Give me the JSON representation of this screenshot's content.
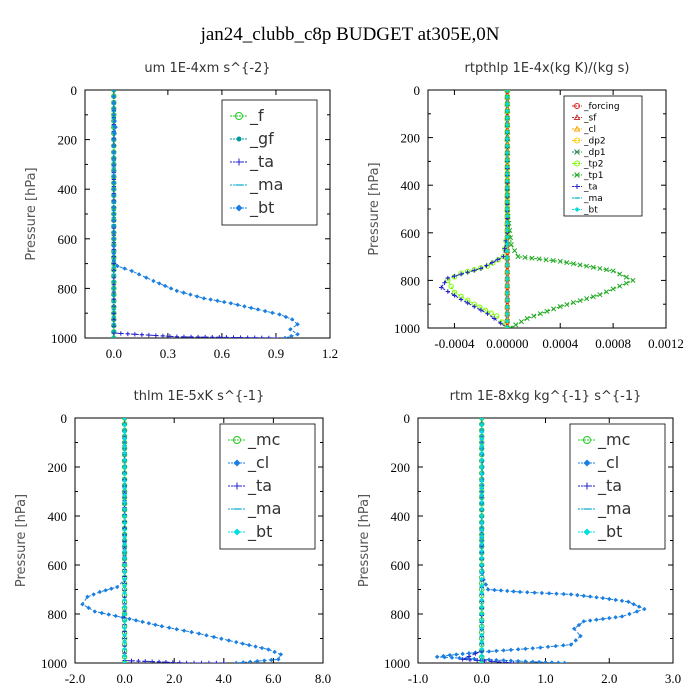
{
  "title": "jan24_clubb_c8p  BUDGET at305E,0N",
  "chart_data": [
    {
      "type": "line",
      "title": "um   1E-4xm s^{-2}",
      "ylabel": "Pressure [hPa]",
      "xlim": [
        -0.16,
        1.2
      ],
      "ylim": [
        1000,
        0
      ],
      "xticks": [
        0.0,
        0.3,
        0.6,
        0.9,
        1.2
      ],
      "xtick_labels": [
        "0.0",
        "0.3",
        "0.6",
        "0.9",
        "1.2"
      ],
      "yticks": [
        0,
        200,
        400,
        600,
        800,
        1000
      ],
      "legend_style": "large",
      "series": [
        {
          "name": "_f",
          "color": "#22cc22",
          "marker": "circle",
          "points": [
            [
              0,
              0
            ],
            [
              0,
              100
            ],
            [
              0,
              200
            ],
            [
              0,
              300
            ],
            [
              0,
              400
            ],
            [
              0,
              500
            ],
            [
              0,
              600
            ],
            [
              0,
              700
            ],
            [
              0,
              800
            ],
            [
              0,
              900
            ],
            [
              0,
              1000
            ]
          ]
        },
        {
          "name": "_gf",
          "color": "#009999",
          "marker": "dot",
          "points": [
            [
              0,
              0
            ],
            [
              0,
              100
            ],
            [
              0,
              200
            ],
            [
              0,
              300
            ],
            [
              0,
              400
            ],
            [
              0,
              500
            ],
            [
              0,
              600
            ],
            [
              0,
              700
            ],
            [
              0,
              800
            ],
            [
              0,
              900
            ],
            [
              0,
              1000
            ]
          ]
        },
        {
          "name": "_ta",
          "color": "#2222cc",
          "marker": "plus",
          "points": [
            [
              0,
              0
            ],
            [
              0,
              500
            ],
            [
              0,
              900
            ],
            [
              0,
              980
            ],
            [
              0.35,
              995
            ],
            [
              0.9,
              1000
            ]
          ]
        },
        {
          "name": "_ma",
          "color": "#00a8c8",
          "marker": "dash",
          "points": [
            [
              0,
              0
            ],
            [
              0,
              1000
            ]
          ]
        },
        {
          "name": "_bt",
          "color": "#1a7fe0",
          "marker": "diamond",
          "points": [
            [
              0,
              0
            ],
            [
              0,
              100
            ],
            [
              0.01,
              150
            ],
            [
              0,
              200
            ],
            [
              0,
              300
            ],
            [
              0,
              400
            ],
            [
              0,
              500
            ],
            [
              0,
              600
            ],
            [
              0,
              690
            ],
            [
              0.02,
              710
            ],
            [
              0.1,
              730
            ],
            [
              0.22,
              770
            ],
            [
              0.35,
              810
            ],
            [
              0.5,
              840
            ],
            [
              0.65,
              860
            ],
            [
              0.8,
              885
            ],
            [
              0.92,
              905
            ],
            [
              0.99,
              925
            ],
            [
              1.02,
              945
            ],
            [
              0.98,
              965
            ],
            [
              1.02,
              985
            ],
            [
              0.95,
              1000
            ]
          ]
        }
      ]
    },
    {
      "type": "line",
      "title": "rtpthlp   1E-4x(kg K)/(kg s)",
      "ylabel": "Pressure [hPa]",
      "xlim": [
        -0.0006,
        0.0012
      ],
      "ylim": [
        1000,
        0
      ],
      "xticks": [
        -0.0004,
        0.0,
        0.0004,
        0.0008,
        0.0012
      ],
      "xtick_labels": [
        "-0.0004",
        "0.00000",
        "0.0004",
        "0.0008",
        "0.0012"
      ],
      "yticks": [
        0,
        200,
        400,
        600,
        800,
        1000
      ],
      "legend_style": "small",
      "series": [
        {
          "name": "_forcing",
          "color": "#dd2222",
          "marker": "circle",
          "points": [
            [
              0,
              0
            ],
            [
              0,
              1000
            ]
          ]
        },
        {
          "name": "_sf",
          "color": "#cc3333",
          "marker": "tri",
          "points": [
            [
              0,
              0
            ],
            [
              0,
              1000
            ]
          ]
        },
        {
          "name": "_cl",
          "color": "#ffa500",
          "marker": "tri",
          "points": [
            [
              0,
              0
            ],
            [
              0,
              1000
            ]
          ]
        },
        {
          "name": "_dp2",
          "color": "#ffcc00",
          "marker": "circle",
          "points": [
            [
              0,
              0
            ],
            [
              0,
              1000
            ]
          ]
        },
        {
          "name": "_dp1",
          "color": "#2e8b57",
          "marker": "cross",
          "points": [
            [
              0,
              0
            ],
            [
              0,
              1000
            ]
          ]
        },
        {
          "name": "_tp2",
          "color": "#7cfc00",
          "marker": "circle",
          "points": [
            [
              0,
              0
            ],
            [
              0,
              600
            ],
            [
              -3e-05,
              700
            ],
            [
              -0.00015,
              740
            ],
            [
              -0.00035,
              770
            ],
            [
              -0.00045,
              800
            ],
            [
              -0.0004,
              850
            ],
            [
              -0.00025,
              900
            ],
            [
              -8e-05,
              950
            ],
            [
              0,
              1000
            ]
          ]
        },
        {
          "name": "_tp1",
          "color": "#22aa22",
          "marker": "cross",
          "points": [
            [
              0,
              0
            ],
            [
              0,
              500
            ],
            [
              3e-05,
              650
            ],
            [
              8e-05,
              700
            ],
            [
              0.0004,
              720
            ],
            [
              0.0008,
              760
            ],
            [
              0.00095,
              800
            ],
            [
              0.0007,
              860
            ],
            [
              0.0004,
              910
            ],
            [
              0.00015,
              960
            ],
            [
              2e-05,
              1000
            ]
          ]
        },
        {
          "name": "_ta",
          "color": "#2222cc",
          "marker": "plus",
          "points": [
            [
              0,
              0
            ],
            [
              0,
              600
            ],
            [
              -3e-05,
              700
            ],
            [
              -0.0002,
              750
            ],
            [
              -0.00045,
              790
            ],
            [
              -0.0005,
              830
            ],
            [
              -0.00035,
              880
            ],
            [
              -0.00015,
              940
            ],
            [
              0,
              1000
            ]
          ]
        },
        {
          "name": "_ma",
          "color": "#00a8c8",
          "marker": "dash",
          "points": [
            [
              0,
              0
            ],
            [
              0,
              1000
            ]
          ]
        },
        {
          "name": "_bt",
          "color": "#00dddd",
          "marker": "diamond",
          "points": [
            [
              0,
              0
            ],
            [
              0,
              1000
            ]
          ]
        }
      ]
    },
    {
      "type": "line",
      "title": "thlm   1E-5xK s^{-1}",
      "ylabel": "Pressure [hPa]",
      "xlim": [
        -2.0,
        8.0
      ],
      "ylim": [
        1000,
        0
      ],
      "xticks": [
        -2.0,
        0.0,
        2.0,
        4.0,
        6.0,
        8.0
      ],
      "xtick_labels": [
        "-2.0",
        "0.0",
        "2.0",
        "4.0",
        "6.0",
        "8.0"
      ],
      "yticks": [
        0,
        200,
        400,
        600,
        800,
        1000
      ],
      "legend_style": "large",
      "series": [
        {
          "name": "_mc",
          "color": "#22cc22",
          "marker": "circle",
          "points": [
            [
              0,
              0
            ],
            [
              0,
              100
            ],
            [
              0,
              200
            ],
            [
              0,
              300
            ],
            [
              0,
              400
            ],
            [
              0,
              500
            ],
            [
              0,
              600
            ],
            [
              0,
              700
            ],
            [
              0,
              800
            ],
            [
              0,
              900
            ],
            [
              0,
              1000
            ]
          ]
        },
        {
          "name": "_cl",
          "color": "#1a7fe0",
          "marker": "diamond",
          "points": [
            [
              0,
              0
            ],
            [
              0,
              100
            ],
            [
              0,
              200
            ],
            [
              0,
              300
            ],
            [
              0,
              400
            ],
            [
              0,
              500
            ],
            [
              0,
              600
            ],
            [
              0,
              660
            ],
            [
              -0.3,
              690
            ],
            [
              -1.0,
              710
            ],
            [
              -1.5,
              730
            ],
            [
              -1.7,
              760
            ],
            [
              -1.2,
              790
            ],
            [
              0.2,
              820
            ],
            [
              1.5,
              850
            ],
            [
              3.0,
              880
            ],
            [
              4.5,
              915
            ],
            [
              5.8,
              945
            ],
            [
              6.3,
              965
            ],
            [
              6.2,
              985
            ],
            [
              4.5,
              1000
            ]
          ]
        },
        {
          "name": "_ta",
          "color": "#2222cc",
          "marker": "plus",
          "points": [
            [
              0,
              0
            ],
            [
              0,
              900
            ],
            [
              0,
              990
            ],
            [
              2.5,
              1000
            ],
            [
              4.0,
              1000
            ]
          ]
        },
        {
          "name": "_ma",
          "color": "#00a8c8",
          "marker": "dash",
          "points": [
            [
              0,
              0
            ],
            [
              0,
              1000
            ]
          ]
        },
        {
          "name": "_bt",
          "color": "#00dddd",
          "marker": "diamond",
          "points": [
            [
              0,
              0
            ],
            [
              0,
              1000
            ]
          ]
        }
      ]
    },
    {
      "type": "line",
      "title": "rtm   1E-8xkg kg^{-1} s^{-1}",
      "ylabel": "Pressure [hPa]",
      "xlim": [
        -1.0,
        3.0
      ],
      "ylim": [
        1000,
        0
      ],
      "xticks": [
        -1.0,
        0.0,
        1.0,
        2.0,
        3.0
      ],
      "xtick_labels": [
        "-1.0",
        "0.0",
        "1.0",
        "2.0",
        "3.0"
      ],
      "yticks": [
        0,
        200,
        400,
        600,
        800,
        1000
      ],
      "legend_style": "large",
      "series": [
        {
          "name": "_mc",
          "color": "#22cc22",
          "marker": "circle",
          "points": [
            [
              0,
              0
            ],
            [
              0,
              100
            ],
            [
              0,
              200
            ],
            [
              0,
              300
            ],
            [
              0,
              400
            ],
            [
              0,
              500
            ],
            [
              0,
              600
            ],
            [
              0,
              700
            ],
            [
              0,
              800
            ],
            [
              0,
              900
            ],
            [
              0,
              1000
            ]
          ]
        },
        {
          "name": "_cl",
          "color": "#1a7fe0",
          "marker": "diamond",
          "points": [
            [
              0,
              0
            ],
            [
              0,
              100
            ],
            [
              0.01,
              200
            ],
            [
              0,
              300
            ],
            [
              0,
              400
            ],
            [
              0,
              500
            ],
            [
              0,
              600
            ],
            [
              0.03,
              660
            ],
            [
              0.1,
              700
            ],
            [
              0.6,
              710
            ],
            [
              1.4,
              720
            ],
            [
              1.9,
              735
            ],
            [
              2.3,
              750
            ],
            [
              2.55,
              780
            ],
            [
              2.2,
              810
            ],
            [
              1.6,
              830
            ],
            [
              1.45,
              860
            ],
            [
              1.55,
              890
            ],
            [
              1.4,
              925
            ],
            [
              0.8,
              940
            ],
            [
              0.0,
              955
            ],
            [
              -0.5,
              968
            ],
            [
              -0.7,
              975
            ],
            [
              0.0,
              985
            ],
            [
              0.8,
              995
            ],
            [
              1.3,
              1000
            ]
          ]
        },
        {
          "name": "_ta",
          "color": "#2222cc",
          "marker": "plus",
          "points": [
            [
              0,
              0
            ],
            [
              0,
              950
            ],
            [
              -0.3,
              985
            ],
            [
              0.5,
              1000
            ]
          ]
        },
        {
          "name": "_ma",
          "color": "#00a8c8",
          "marker": "dash",
          "points": [
            [
              0,
              0
            ],
            [
              0,
              1000
            ]
          ]
        },
        {
          "name": "_bt",
          "color": "#00dddd",
          "marker": "diamond",
          "points": [
            [
              0,
              0
            ],
            [
              0,
              1000
            ]
          ]
        }
      ]
    }
  ]
}
